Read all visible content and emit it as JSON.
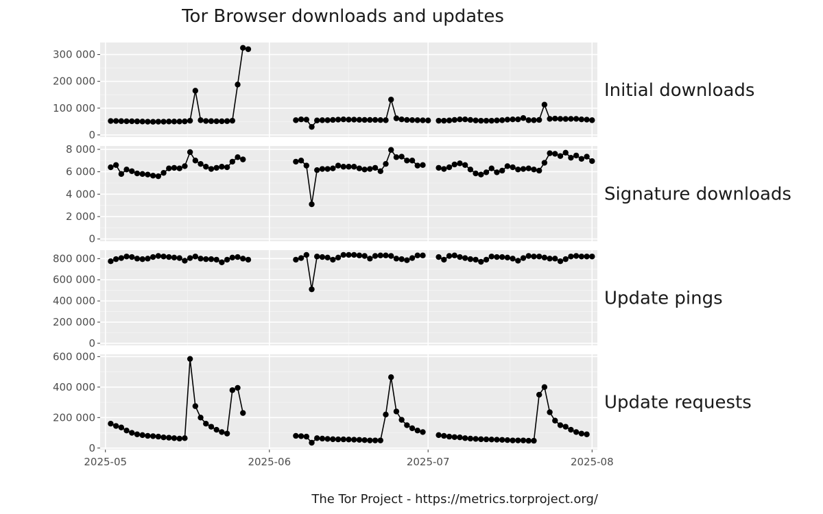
{
  "chart_data": {
    "type": "line",
    "title": "Tor Browser downloads and updates",
    "caption": "The Tor Project - https://metrics.torproject.org/",
    "x_ticks": [
      "2025-05",
      "2025-06",
      "2025-07",
      "2025-08"
    ],
    "x_range": [
      "2025-04-30",
      "2025-08-02"
    ],
    "grid": true,
    "facets": [
      {
        "name": "Initial downloads",
        "ylim": [
          -8000,
          345000
        ],
        "y_ticks": [
          {
            "value": 0,
            "label": "0"
          },
          {
            "value": 100000,
            "label": "100 000"
          },
          {
            "value": 200000,
            "label": "200 000"
          },
          {
            "value": 300000,
            "label": "300 000"
          }
        ],
        "x": [
          "2025-05-02",
          "2025-05-03",
          "2025-05-04",
          "2025-05-05",
          "2025-05-06",
          "2025-05-07",
          "2025-05-08",
          "2025-05-09",
          "2025-05-10",
          "2025-05-11",
          "2025-05-12",
          "2025-05-13",
          "2025-05-14",
          "2025-05-15",
          "2025-05-16",
          "2025-05-17",
          "2025-05-18",
          "2025-05-19",
          "2025-05-20",
          "2025-05-21",
          "2025-05-22",
          "2025-05-23",
          "2025-05-24",
          "2025-05-25",
          "2025-05-26",
          "2025-05-27",
          "2025-05-28",
          null,
          "2025-06-06",
          "2025-06-07",
          "2025-06-08",
          "2025-06-09",
          "2025-06-10",
          "2025-06-11",
          "2025-06-12",
          "2025-06-13",
          "2025-06-14",
          "2025-06-15",
          "2025-06-16",
          "2025-06-17",
          "2025-06-18",
          "2025-06-19",
          "2025-06-20",
          "2025-06-21",
          "2025-06-22",
          "2025-06-23",
          "2025-06-24",
          "2025-06-25",
          "2025-06-26",
          "2025-06-27",
          "2025-06-28",
          "2025-06-29",
          "2025-06-30",
          "2025-07-01",
          null,
          "2025-07-03",
          "2025-07-04",
          "2025-07-05",
          "2025-07-06",
          "2025-07-07",
          "2025-07-08",
          "2025-07-09",
          "2025-07-10",
          "2025-07-11",
          "2025-07-12",
          "2025-07-13",
          "2025-07-14",
          "2025-07-15",
          "2025-07-16",
          "2025-07-17",
          "2025-07-18",
          "2025-07-19",
          "2025-07-20",
          "2025-07-21",
          "2025-07-22",
          "2025-07-23",
          "2025-07-24",
          "2025-07-25",
          "2025-07-26",
          "2025-07-27",
          "2025-07-28",
          "2025-07-29",
          "2025-07-30",
          "2025-07-31",
          "2025-08-01"
        ],
        "values": [
          52000,
          52000,
          51500,
          51000,
          51000,
          50500,
          50000,
          49500,
          49000,
          49500,
          49500,
          50000,
          50000,
          50000,
          50500,
          53000,
          165000,
          55000,
          52000,
          51500,
          51000,
          51000,
          51500,
          53000,
          188000,
          325000,
          320000,
          null,
          55000,
          58000,
          57000,
          30000,
          54000,
          55000,
          55000,
          56000,
          57000,
          58000,
          57000,
          57000,
          56500,
          56000,
          56000,
          56000,
          55500,
          55000,
          132000,
          62000,
          58000,
          56000,
          55500,
          55000,
          54500,
          54000,
          null,
          53000,
          53000,
          54000,
          56000,
          58000,
          58000,
          56000,
          54000,
          53000,
          53000,
          53000,
          54000,
          55000,
          57000,
          58000,
          58000,
          63000,
          55000,
          55000,
          56000,
          113000,
          60000,
          61000,
          60000,
          59500,
          60000,
          60000,
          58000,
          57000,
          55000
        ]
      },
      {
        "name": "Signature downloads",
        "ylim": [
          -200,
          8300
        ],
        "y_ticks": [
          {
            "value": 0,
            "label": "0"
          },
          {
            "value": 2000,
            "label": "2 000"
          },
          {
            "value": 4000,
            "label": "4 000"
          },
          {
            "value": 6000,
            "label": "6 000"
          },
          {
            "value": 8000,
            "label": "8 000"
          }
        ],
        "x": [
          "2025-05-02",
          "2025-05-03",
          "2025-05-04",
          "2025-05-05",
          "2025-05-06",
          "2025-05-07",
          "2025-05-08",
          "2025-05-09",
          "2025-05-10",
          "2025-05-11",
          "2025-05-12",
          "2025-05-13",
          "2025-05-14",
          "2025-05-15",
          "2025-05-16",
          "2025-05-17",
          "2025-05-18",
          "2025-05-19",
          "2025-05-20",
          "2025-05-21",
          "2025-05-22",
          "2025-05-23",
          "2025-05-24",
          "2025-05-25",
          "2025-05-26",
          "2025-05-27",
          "2025-05-28",
          null,
          "2025-06-06",
          "2025-06-07",
          "2025-06-08",
          "2025-06-09",
          "2025-06-10",
          "2025-06-11",
          "2025-06-12",
          "2025-06-13",
          "2025-06-14",
          "2025-06-15",
          "2025-06-16",
          "2025-06-17",
          "2025-06-18",
          "2025-06-19",
          "2025-06-20",
          "2025-06-21",
          "2025-06-22",
          "2025-06-23",
          "2025-06-24",
          "2025-06-25",
          "2025-06-26",
          "2025-06-27",
          "2025-06-28",
          "2025-06-29",
          "2025-06-30",
          "2025-07-01",
          null,
          "2025-07-03",
          "2025-07-04",
          "2025-07-05",
          "2025-07-06",
          "2025-07-07",
          "2025-07-08",
          "2025-07-09",
          "2025-07-10",
          "2025-07-11",
          "2025-07-12",
          "2025-07-13",
          "2025-07-14",
          "2025-07-15",
          "2025-07-16",
          "2025-07-17",
          "2025-07-18",
          "2025-07-19",
          "2025-07-20",
          "2025-07-21",
          "2025-07-22",
          "2025-07-23",
          "2025-07-24",
          "2025-07-25",
          "2025-07-26",
          "2025-07-27",
          "2025-07-28",
          "2025-07-29",
          "2025-07-30",
          "2025-07-31",
          "2025-08-01"
        ],
        "values": [
          6400,
          6600,
          5800,
          6200,
          6050,
          5850,
          5800,
          5750,
          5650,
          5600,
          5900,
          6300,
          6350,
          6300,
          6500,
          7750,
          7000,
          6700,
          6450,
          6250,
          6350,
          6450,
          6400,
          6900,
          7300,
          7100,
          null,
          null,
          6900,
          7000,
          6550,
          3100,
          6150,
          6250,
          6250,
          6300,
          6550,
          6450,
          6450,
          6450,
          6300,
          6200,
          6250,
          6350,
          6050,
          6700,
          7950,
          7300,
          7350,
          7000,
          7000,
          6550,
          6600,
          null,
          null,
          6350,
          6250,
          6400,
          6650,
          6750,
          6600,
          6200,
          5850,
          5750,
          5950,
          6300,
          5950,
          6100,
          6500,
          6400,
          6200,
          6250,
          6300,
          6200,
          6100,
          6800,
          7650,
          7600,
          7400,
          7700,
          7250,
          7450,
          7150,
          7350,
          6950
        ]
      },
      {
        "name": "Update pings",
        "ylim": [
          -20000,
          880000
        ],
        "y_ticks": [
          {
            "value": 0,
            "label": "0"
          },
          {
            "value": 200000,
            "label": "200 000"
          },
          {
            "value": 400000,
            "label": "400 000"
          },
          {
            "value": 600000,
            "label": "600 000"
          },
          {
            "value": 800000,
            "label": "800 000"
          }
        ],
        "x": [
          "2025-05-02",
          "2025-05-03",
          "2025-05-04",
          "2025-05-05",
          "2025-05-06",
          "2025-05-07",
          "2025-05-08",
          "2025-05-09",
          "2025-05-10",
          "2025-05-11",
          "2025-05-12",
          "2025-05-13",
          "2025-05-14",
          "2025-05-15",
          "2025-05-16",
          "2025-05-17",
          "2025-05-18",
          "2025-05-19",
          "2025-05-20",
          "2025-05-21",
          "2025-05-22",
          "2025-05-23",
          "2025-05-24",
          "2025-05-25",
          "2025-05-26",
          "2025-05-27",
          "2025-05-28",
          null,
          "2025-06-06",
          "2025-06-07",
          "2025-06-08",
          "2025-06-09",
          "2025-06-10",
          "2025-06-11",
          "2025-06-12",
          "2025-06-13",
          "2025-06-14",
          "2025-06-15",
          "2025-06-16",
          "2025-06-17",
          "2025-06-18",
          "2025-06-19",
          "2025-06-20",
          "2025-06-21",
          "2025-06-22",
          "2025-06-23",
          "2025-06-24",
          "2025-06-25",
          "2025-06-26",
          "2025-06-27",
          "2025-06-28",
          "2025-06-29",
          "2025-06-30",
          "2025-07-01",
          null,
          "2025-07-03",
          "2025-07-04",
          "2025-07-05",
          "2025-07-06",
          "2025-07-07",
          "2025-07-08",
          "2025-07-09",
          "2025-07-10",
          "2025-07-11",
          "2025-07-12",
          "2025-07-13",
          "2025-07-14",
          "2025-07-15",
          "2025-07-16",
          "2025-07-17",
          "2025-07-18",
          "2025-07-19",
          "2025-07-20",
          "2025-07-21",
          "2025-07-22",
          "2025-07-23",
          "2025-07-24",
          "2025-07-25",
          "2025-07-26",
          "2025-07-27",
          "2025-07-28",
          "2025-07-29",
          "2025-07-30",
          "2025-07-31",
          "2025-08-01"
        ],
        "values": [
          775000,
          795000,
          805000,
          820000,
          815000,
          800000,
          795000,
          800000,
          815000,
          825000,
          820000,
          815000,
          810000,
          805000,
          780000,
          805000,
          820000,
          800000,
          795000,
          795000,
          790000,
          765000,
          790000,
          810000,
          815000,
          800000,
          790000,
          null,
          790000,
          805000,
          835000,
          510000,
          820000,
          815000,
          810000,
          790000,
          810000,
          835000,
          835000,
          835000,
          830000,
          825000,
          800000,
          825000,
          830000,
          830000,
          825000,
          800000,
          795000,
          785000,
          805000,
          830000,
          830000,
          null,
          825000,
          815000,
          790000,
          825000,
          830000,
          815000,
          805000,
          795000,
          790000,
          770000,
          790000,
          820000,
          815000,
          815000,
          810000,
          800000,
          780000,
          805000,
          825000,
          820000,
          820000,
          810000,
          800000,
          800000,
          775000,
          795000,
          820000,
          825000,
          820000,
          820000,
          820000
        ]
      },
      {
        "name": "Update requests",
        "ylim": [
          -10000,
          615000
        ],
        "y_ticks": [
          {
            "value": 0,
            "label": "0"
          },
          {
            "value": 200000,
            "label": "200 000"
          },
          {
            "value": 400000,
            "label": "400 000"
          },
          {
            "value": 600000,
            "label": "600 000"
          }
        ],
        "x": [
          "2025-05-02",
          "2025-05-03",
          "2025-05-04",
          "2025-05-05",
          "2025-05-06",
          "2025-05-07",
          "2025-05-08",
          "2025-05-09",
          "2025-05-10",
          "2025-05-11",
          "2025-05-12",
          "2025-05-13",
          "2025-05-14",
          "2025-05-15",
          "2025-05-16",
          "2025-05-17",
          "2025-05-18",
          "2025-05-19",
          "2025-05-20",
          "2025-05-21",
          "2025-05-22",
          "2025-05-23",
          "2025-05-24",
          "2025-05-25",
          "2025-05-26",
          "2025-05-27",
          "2025-05-28",
          null,
          "2025-06-06",
          "2025-06-07",
          "2025-06-08",
          "2025-06-09",
          "2025-06-10",
          "2025-06-11",
          "2025-06-12",
          "2025-06-13",
          "2025-06-14",
          "2025-06-15",
          "2025-06-16",
          "2025-06-17",
          "2025-06-18",
          "2025-06-19",
          "2025-06-20",
          "2025-06-21",
          "2025-06-22",
          "2025-06-23",
          "2025-06-24",
          "2025-06-25",
          "2025-06-26",
          "2025-06-27",
          "2025-06-28",
          "2025-06-29",
          "2025-06-30",
          "2025-07-01",
          null,
          "2025-07-03",
          "2025-07-04",
          "2025-07-05",
          "2025-07-06",
          "2025-07-07",
          "2025-07-08",
          "2025-07-09",
          "2025-07-10",
          "2025-07-11",
          "2025-07-12",
          "2025-07-13",
          "2025-07-14",
          "2025-07-15",
          "2025-07-16",
          "2025-07-17",
          "2025-07-18",
          "2025-07-19",
          "2025-07-20",
          "2025-07-21",
          "2025-07-22",
          "2025-07-23",
          "2025-07-24",
          "2025-07-25",
          "2025-07-26",
          "2025-07-27",
          "2025-07-28",
          "2025-07-29",
          "2025-07-30",
          "2025-07-31",
          "2025-08-01"
        ],
        "values": [
          160000,
          145000,
          135000,
          115000,
          100000,
          90000,
          85000,
          80000,
          78000,
          75000,
          70000,
          68000,
          65000,
          62000,
          65000,
          585000,
          275000,
          200000,
          160000,
          140000,
          120000,
          105000,
          95000,
          380000,
          395000,
          230000,
          null,
          null,
          80000,
          78000,
          75000,
          35000,
          65000,
          62000,
          60000,
          58000,
          57000,
          57000,
          56000,
          55000,
          54000,
          52000,
          50000,
          50000,
          50000,
          220000,
          465000,
          240000,
          185000,
          150000,
          130000,
          115000,
          105000,
          null,
          null,
          85000,
          80000,
          75000,
          72000,
          70000,
          65000,
          62000,
          60000,
          58000,
          57000,
          56000,
          55000,
          54000,
          52000,
          50000,
          50000,
          50000,
          48000,
          48000,
          350000,
          400000,
          235000,
          180000,
          150000,
          140000,
          120000,
          105000,
          95000,
          90000,
          null
        ]
      }
    ]
  }
}
